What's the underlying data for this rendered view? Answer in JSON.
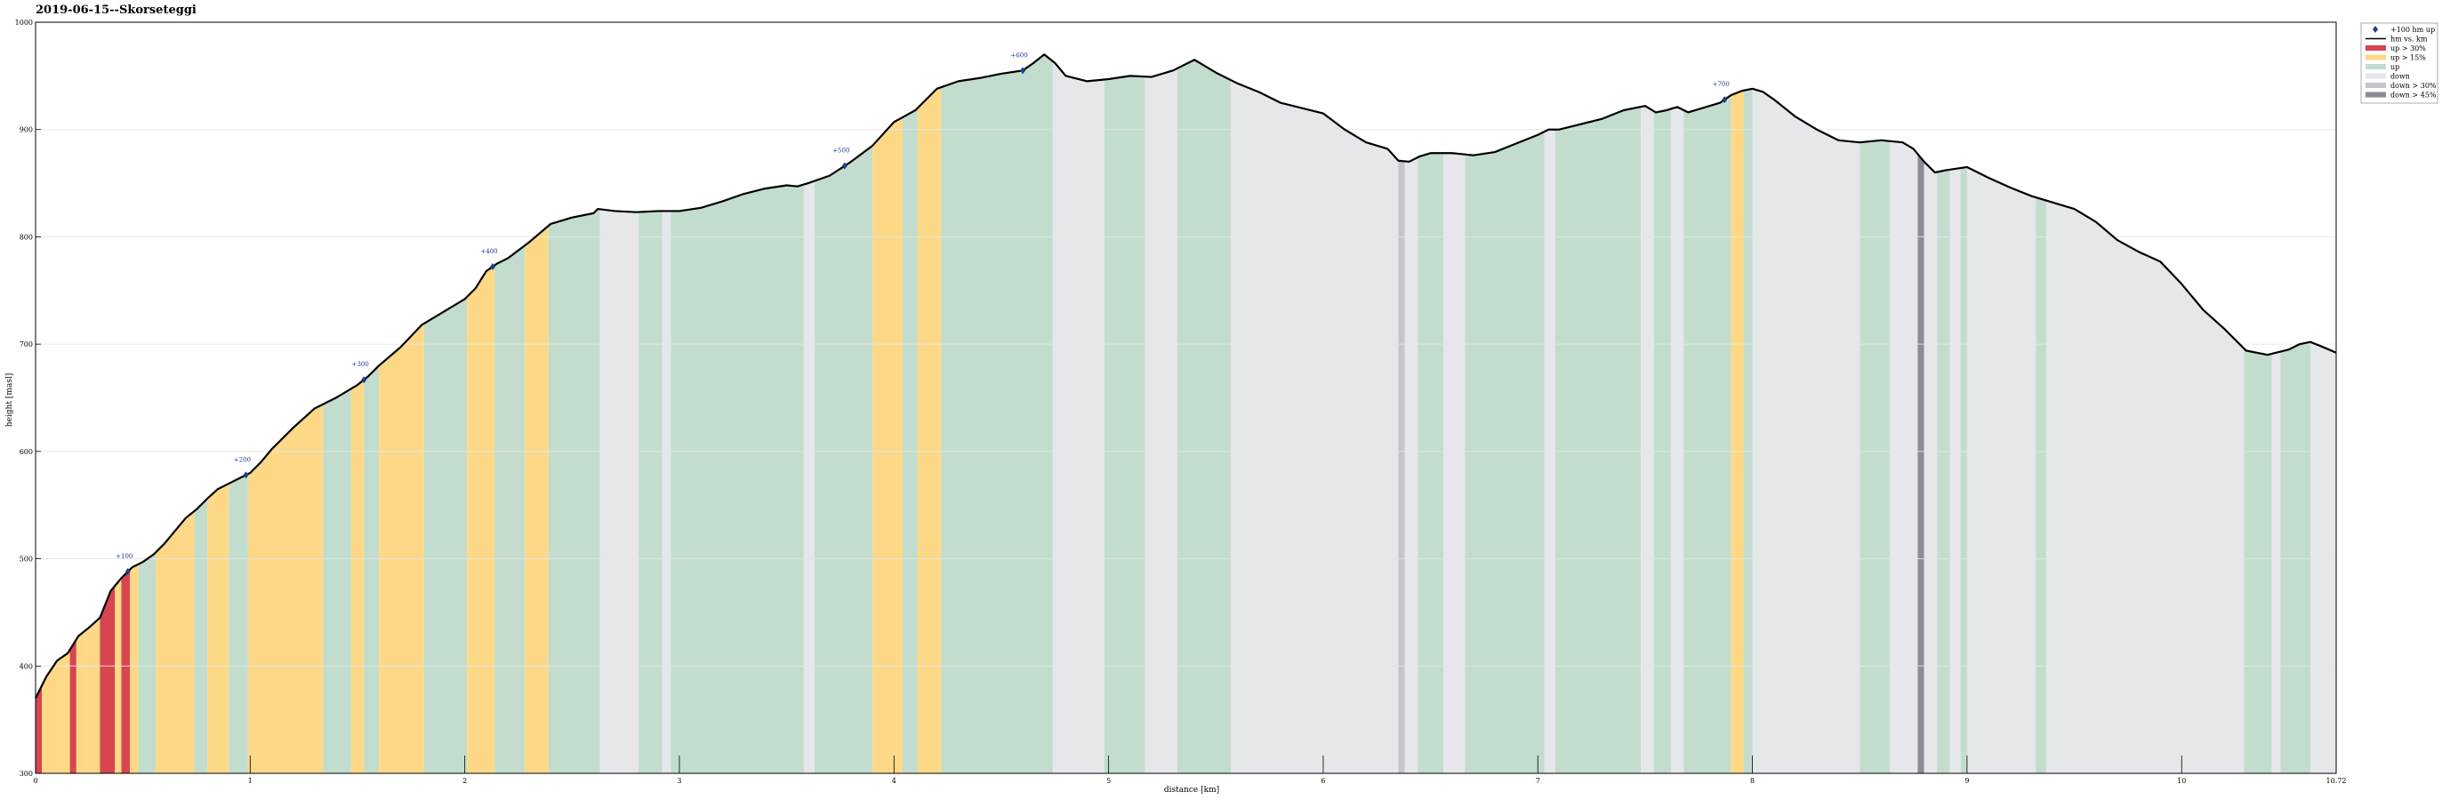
{
  "chart_data": {
    "type": "area",
    "title": "2019-06-15--Skorseteggi",
    "xlabel": "distance [km]",
    "ylabel": "height [masl]",
    "xlim": [
      0,
      10.72
    ],
    "ylim": [
      300,
      1000
    ],
    "xticks": [
      "0",
      "1",
      "2",
      "3",
      "4",
      "5",
      "6",
      "7",
      "8",
      "9",
      "10",
      "10.72"
    ],
    "xtick_values": [
      0,
      1,
      2,
      3,
      4,
      5,
      6,
      7,
      8,
      9,
      10,
      10.72
    ],
    "yticks": [
      300,
      400,
      500,
      600,
      700,
      800,
      900,
      1000
    ],
    "grid": true,
    "legend_placement": "top-right outside",
    "legend": [
      {
        "key": "marker",
        "label": "+100 hm up",
        "color": "#1f3f8f"
      },
      {
        "key": "line",
        "label": "hm vs. km",
        "color": "#000000"
      },
      {
        "key": "up30",
        "label": "up > 30%",
        "color": "#d64550"
      },
      {
        "key": "up15",
        "label": "up > 15%",
        "color": "#fdd987"
      },
      {
        "key": "up",
        "label": "up",
        "color": "#c2ddcd"
      },
      {
        "key": "down",
        "label": "down",
        "color": "#e6e7eb"
      },
      {
        "key": "down30",
        "label": "down > 30%",
        "color": "#c4c6cc"
      },
      {
        "key": "down45",
        "label": "down > 45%",
        "color": "#8a8d96"
      }
    ],
    "profile": {
      "x": [
        0,
        0.05,
        0.1,
        0.15,
        0.2,
        0.25,
        0.3,
        0.35,
        0.4,
        0.45,
        0.5,
        0.55,
        0.6,
        0.65,
        0.7,
        0.75,
        0.8,
        0.85,
        0.9,
        0.95,
        1.0,
        1.05,
        1.1,
        1.2,
        1.3,
        1.35,
        1.4,
        1.5,
        1.55,
        1.6,
        1.7,
        1.8,
        1.9,
        2.0,
        2.05,
        2.1,
        2.15,
        2.2,
        2.3,
        2.4,
        2.5,
        2.6,
        2.62,
        2.7,
        2.8,
        2.9,
        3.0,
        3.1,
        3.2,
        3.3,
        3.4,
        3.5,
        3.55,
        3.6,
        3.7,
        3.8,
        3.9,
        4.0,
        4.1,
        4.2,
        4.3,
        4.4,
        4.5,
        4.6,
        4.65,
        4.7,
        4.75,
        4.8,
        4.9,
        5.0,
        5.1,
        5.2,
        5.3,
        5.4,
        5.5,
        5.6,
        5.7,
        5.8,
        5.9,
        6.0,
        6.1,
        6.2,
        6.3,
        6.35,
        6.4,
        6.45,
        6.5,
        6.6,
        6.7,
        6.8,
        6.9,
        7.0,
        7.05,
        7.1,
        7.2,
        7.3,
        7.4,
        7.5,
        7.55,
        7.6,
        7.65,
        7.7,
        7.8,
        7.85,
        7.9,
        7.95,
        8.0,
        8.05,
        8.1,
        8.2,
        8.3,
        8.4,
        8.5,
        8.6,
        8.7,
        8.75,
        8.8,
        8.85,
        8.9,
        9.0,
        9.1,
        9.2,
        9.3,
        9.4,
        9.5,
        9.6,
        9.7,
        9.8,
        9.9,
        10.0,
        10.1,
        10.2,
        10.3,
        10.4,
        10.5,
        10.55,
        10.6,
        10.65,
        10.72
      ],
      "y": [
        370,
        390,
        405,
        412,
        428,
        436,
        445,
        470,
        482,
        492,
        497,
        504,
        514,
        526,
        538,
        546,
        556,
        565,
        570,
        575,
        580,
        590,
        602,
        622,
        640,
        645,
        650,
        662,
        670,
        680,
        697,
        718,
        730,
        742,
        752,
        768,
        775,
        780,
        795,
        812,
        818,
        822,
        826,
        824,
        823,
        824,
        824,
        827,
        833,
        840,
        845,
        848,
        847,
        850,
        857,
        870,
        885,
        907,
        918,
        938,
        945,
        948,
        952,
        955,
        962,
        970,
        962,
        950,
        945,
        947,
        950,
        949,
        955,
        965,
        953,
        943,
        935,
        925,
        920,
        915,
        900,
        888,
        882,
        871,
        870,
        875,
        878,
        878,
        876,
        879,
        887,
        895,
        900,
        900,
        905,
        910,
        918,
        922,
        916,
        918,
        921,
        916,
        922,
        925,
        932,
        936,
        938,
        935,
        928,
        912,
        900,
        890,
        888,
        890,
        888,
        882,
        870,
        860,
        862,
        865,
        855,
        846,
        838,
        832,
        826,
        814,
        797,
        786,
        777,
        756,
        732,
        714,
        694,
        690,
        695,
        700,
        702,
        698,
        692
      ]
    },
    "segments": [
      {
        "x0": 0.0,
        "x1": 0.03,
        "cls": "up30"
      },
      {
        "x0": 0.03,
        "x1": 0.12,
        "cls": "up15"
      },
      {
        "x0": 0.12,
        "x1": 0.16,
        "cls": "up15"
      },
      {
        "x0": 0.16,
        "x1": 0.19,
        "cls": "up30"
      },
      {
        "x0": 0.19,
        "x1": 0.24,
        "cls": "up15"
      },
      {
        "x0": 0.24,
        "x1": 0.3,
        "cls": "up15"
      },
      {
        "x0": 0.3,
        "x1": 0.37,
        "cls": "up30"
      },
      {
        "x0": 0.37,
        "x1": 0.4,
        "cls": "up15"
      },
      {
        "x0": 0.4,
        "x1": 0.44,
        "cls": "up30"
      },
      {
        "x0": 0.44,
        "x1": 0.48,
        "cls": "up15"
      },
      {
        "x0": 0.48,
        "x1": 0.56,
        "cls": "up"
      },
      {
        "x0": 0.56,
        "x1": 0.74,
        "cls": "up15"
      },
      {
        "x0": 0.74,
        "x1": 0.8,
        "cls": "up"
      },
      {
        "x0": 0.8,
        "x1": 0.9,
        "cls": "up15"
      },
      {
        "x0": 0.9,
        "x1": 0.99,
        "cls": "up"
      },
      {
        "x0": 0.99,
        "x1": 1.34,
        "cls": "up15"
      },
      {
        "x0": 1.34,
        "x1": 1.47,
        "cls": "up"
      },
      {
        "x0": 1.47,
        "x1": 1.53,
        "cls": "up15"
      },
      {
        "x0": 1.53,
        "x1": 1.6,
        "cls": "up"
      },
      {
        "x0": 1.6,
        "x1": 1.81,
        "cls": "up15"
      },
      {
        "x0": 1.81,
        "x1": 2.01,
        "cls": "up"
      },
      {
        "x0": 2.01,
        "x1": 2.14,
        "cls": "up15"
      },
      {
        "x0": 2.14,
        "x1": 2.28,
        "cls": "up"
      },
      {
        "x0": 2.28,
        "x1": 2.39,
        "cls": "up15"
      },
      {
        "x0": 2.39,
        "x1": 2.63,
        "cls": "up"
      },
      {
        "x0": 2.63,
        "x1": 2.81,
        "cls": "down"
      },
      {
        "x0": 2.81,
        "x1": 2.92,
        "cls": "up"
      },
      {
        "x0": 2.92,
        "x1": 2.96,
        "cls": "down"
      },
      {
        "x0": 2.96,
        "x1": 3.58,
        "cls": "up"
      },
      {
        "x0": 3.58,
        "x1": 3.63,
        "cls": "down"
      },
      {
        "x0": 3.63,
        "x1": 3.9,
        "cls": "up"
      },
      {
        "x0": 3.9,
        "x1": 4.04,
        "cls": "up15"
      },
      {
        "x0": 4.04,
        "x1": 4.11,
        "cls": "up"
      },
      {
        "x0": 4.11,
        "x1": 4.22,
        "cls": "up15"
      },
      {
        "x0": 4.22,
        "x1": 4.74,
        "cls": "up"
      },
      {
        "x0": 4.74,
        "x1": 4.98,
        "cls": "down"
      },
      {
        "x0": 4.98,
        "x1": 5.17,
        "cls": "up"
      },
      {
        "x0": 5.17,
        "x1": 5.32,
        "cls": "down"
      },
      {
        "x0": 5.32,
        "x1": 5.57,
        "cls": "up"
      },
      {
        "x0": 5.57,
        "x1": 6.35,
        "cls": "down"
      },
      {
        "x0": 6.35,
        "x1": 6.38,
        "cls": "down30"
      },
      {
        "x0": 6.38,
        "x1": 6.44,
        "cls": "down"
      },
      {
        "x0": 6.44,
        "x1": 6.56,
        "cls": "up"
      },
      {
        "x0": 6.56,
        "x1": 6.66,
        "cls": "down"
      },
      {
        "x0": 6.66,
        "x1": 7.03,
        "cls": "up"
      },
      {
        "x0": 7.03,
        "x1": 7.08,
        "cls": "down"
      },
      {
        "x0": 7.08,
        "x1": 7.48,
        "cls": "up"
      },
      {
        "x0": 7.48,
        "x1": 7.54,
        "cls": "down"
      },
      {
        "x0": 7.54,
        "x1": 7.62,
        "cls": "up"
      },
      {
        "x0": 7.62,
        "x1": 7.68,
        "cls": "down"
      },
      {
        "x0": 7.68,
        "x1": 7.9,
        "cls": "up"
      },
      {
        "x0": 7.9,
        "x1": 7.96,
        "cls": "up15"
      },
      {
        "x0": 7.96,
        "x1": 8.0,
        "cls": "up"
      },
      {
        "x0": 8.0,
        "x1": 8.5,
        "cls": "down"
      },
      {
        "x0": 8.5,
        "x1": 8.64,
        "cls": "up"
      },
      {
        "x0": 8.64,
        "x1": 8.77,
        "cls": "down"
      },
      {
        "x0": 8.77,
        "x1": 8.8,
        "cls": "down45"
      },
      {
        "x0": 8.8,
        "x1": 8.86,
        "cls": "down"
      },
      {
        "x0": 8.86,
        "x1": 8.92,
        "cls": "up"
      },
      {
        "x0": 8.92,
        "x1": 8.97,
        "cls": "down"
      },
      {
        "x0": 8.97,
        "x1": 9.0,
        "cls": "up"
      },
      {
        "x0": 9.0,
        "x1": 9.32,
        "cls": "down"
      },
      {
        "x0": 9.32,
        "x1": 9.37,
        "cls": "up"
      },
      {
        "x0": 9.37,
        "x1": 10.29,
        "cls": "down"
      },
      {
        "x0": 10.29,
        "x1": 10.42,
        "cls": "up"
      },
      {
        "x0": 10.42,
        "x1": 10.46,
        "cls": "down"
      },
      {
        "x0": 10.46,
        "x1": 10.6,
        "cls": "up"
      },
      {
        "x0": 10.6,
        "x1": 10.72,
        "cls": "down"
      }
    ],
    "markers": [
      {
        "label": "+100",
        "x": 0.43
      },
      {
        "label": "+200",
        "x": 0.98
      },
      {
        "label": "+300",
        "x": 1.53
      },
      {
        "label": "+400",
        "x": 2.13
      },
      {
        "label": "+500",
        "x": 3.77
      },
      {
        "label": "+600",
        "x": 4.6
      },
      {
        "label": "+700",
        "x": 7.87
      }
    ]
  }
}
